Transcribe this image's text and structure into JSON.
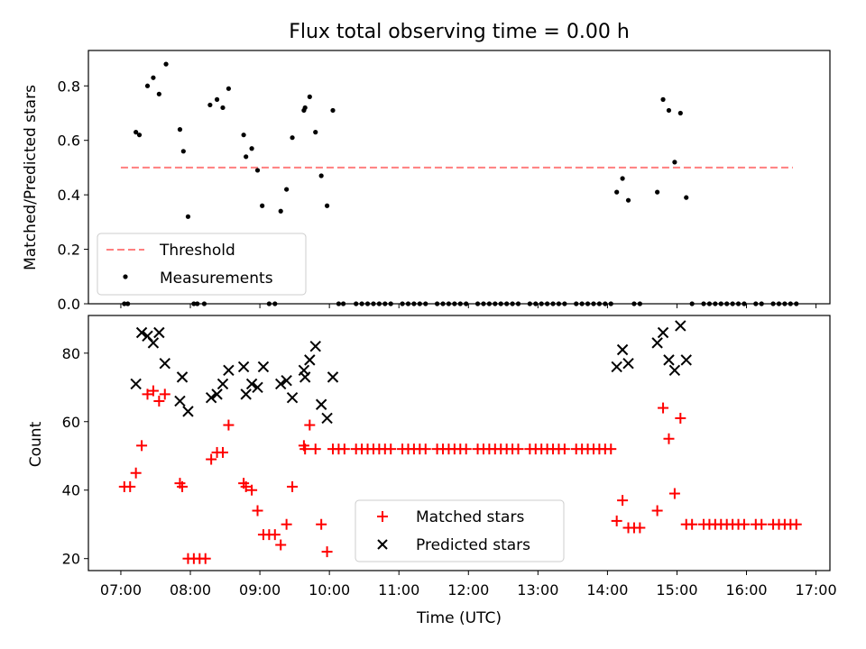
{
  "chart_data": [
    {
      "type": "scatter",
      "title": "Flux total observing time = 0.00 h",
      "xlabel": "",
      "ylabel": "Matched/Predicted stars",
      "ylim": [
        0,
        0.93
      ],
      "yticks": [
        "0.0",
        "0.2",
        "0.4",
        "0.6",
        "0.8"
      ],
      "yticks_values": [
        0,
        0.2,
        0.4,
        0.6,
        0.8
      ],
      "xlim": [
        "06:32",
        "17:12"
      ],
      "threshold": {
        "name": "Threshold",
        "value": 0.5,
        "x_range": [
          "07:00",
          "16:40"
        ],
        "color": "#ff7f7f"
      },
      "legend": {
        "position": "lower-left",
        "entries": [
          "Threshold",
          "Measurements"
        ]
      },
      "series": [
        {
          "name": "Measurements",
          "color": "#000000",
          "marker": "dot",
          "points": [
            [
              "07:03",
              0
            ],
            [
              "07:06",
              0
            ],
            [
              "07:13",
              0.63
            ],
            [
              "07:16",
              0.62
            ],
            [
              "07:23",
              0.8
            ],
            [
              "07:28",
              0.83
            ],
            [
              "07:33",
              0.77
            ],
            [
              "07:39",
              0.88
            ],
            [
              "07:51",
              0.64
            ],
            [
              "07:54",
              0.56
            ],
            [
              "07:58",
              0.32
            ],
            [
              "08:03",
              0
            ],
            [
              "08:06",
              0
            ],
            [
              "08:12",
              0
            ],
            [
              "08:17",
              0.73
            ],
            [
              "08:23",
              0.75
            ],
            [
              "08:28",
              0.72
            ],
            [
              "08:33",
              0.79
            ],
            [
              "08:46",
              0.62
            ],
            [
              "08:48",
              0.54
            ],
            [
              "08:53",
              0.57
            ],
            [
              "08:58",
              0.49
            ],
            [
              "09:02",
              0.36
            ],
            [
              "09:08",
              0
            ],
            [
              "09:13",
              0
            ],
            [
              "09:18",
              0.34
            ],
            [
              "09:23",
              0.42
            ],
            [
              "09:28",
              0.61
            ],
            [
              "09:38",
              0.71
            ],
            [
              "09:39",
              0.72
            ],
            [
              "09:43",
              0.76
            ],
            [
              "09:48",
              0.63
            ],
            [
              "09:53",
              0.47
            ],
            [
              "09:58",
              0.36
            ],
            [
              "10:03",
              0.71
            ],
            [
              "10:08",
              0
            ],
            [
              "10:12",
              0
            ],
            [
              "10:23",
              0
            ],
            [
              "10:28",
              0
            ],
            [
              "10:33",
              0
            ],
            [
              "10:38",
              0
            ],
            [
              "10:43",
              0
            ],
            [
              "10:48",
              0
            ],
            [
              "10:53",
              0
            ],
            [
              "11:03",
              0
            ],
            [
              "11:08",
              0
            ],
            [
              "11:13",
              0
            ],
            [
              "11:18",
              0
            ],
            [
              "11:23",
              0
            ],
            [
              "11:33",
              0
            ],
            [
              "11:38",
              0
            ],
            [
              "11:43",
              0
            ],
            [
              "11:48",
              0
            ],
            [
              "11:53",
              0
            ],
            [
              "11:58",
              0
            ],
            [
              "12:08",
              0
            ],
            [
              "12:13",
              0
            ],
            [
              "12:18",
              0
            ],
            [
              "12:23",
              0
            ],
            [
              "12:28",
              0
            ],
            [
              "12:33",
              0
            ],
            [
              "12:38",
              0
            ],
            [
              "12:43",
              0
            ],
            [
              "12:53",
              0
            ],
            [
              "12:58",
              0
            ],
            [
              "13:03",
              0
            ],
            [
              "13:08",
              0
            ],
            [
              "13:13",
              0
            ],
            [
              "13:18",
              0
            ],
            [
              "13:23",
              0
            ],
            [
              "13:33",
              0
            ],
            [
              "13:38",
              0
            ],
            [
              "13:43",
              0
            ],
            [
              "13:48",
              0
            ],
            [
              "13:53",
              0
            ],
            [
              "13:58",
              0
            ],
            [
              "14:03",
              0
            ],
            [
              "14:08",
              0.41
            ],
            [
              "14:13",
              0.46
            ],
            [
              "14:18",
              0.38
            ],
            [
              "14:23",
              0
            ],
            [
              "14:28",
              0
            ],
            [
              "14:43",
              0.41
            ],
            [
              "14:48",
              0.75
            ],
            [
              "14:53",
              0.71
            ],
            [
              "14:58",
              0.52
            ],
            [
              "15:03",
              0.7
            ],
            [
              "15:08",
              0.39
            ],
            [
              "15:13",
              0
            ],
            [
              "15:23",
              0
            ],
            [
              "15:28",
              0
            ],
            [
              "15:33",
              0
            ],
            [
              "15:38",
              0
            ],
            [
              "15:43",
              0
            ],
            [
              "15:48",
              0
            ],
            [
              "15:53",
              0
            ],
            [
              "15:58",
              0
            ],
            [
              "16:08",
              0
            ],
            [
              "16:13",
              0
            ],
            [
              "16:23",
              0
            ],
            [
              "16:28",
              0
            ],
            [
              "16:33",
              0
            ],
            [
              "16:38",
              0
            ],
            [
              "16:43",
              0
            ]
          ]
        }
      ]
    },
    {
      "type": "scatter",
      "title": "",
      "xlabel": "Time (UTC)",
      "ylabel": "Count",
      "ylim": [
        16.5,
        91
      ],
      "yticks": [
        "20",
        "40",
        "60",
        "80"
      ],
      "yticks_values": [
        20,
        40,
        60,
        80
      ],
      "xlim": [
        "06:32",
        "17:12"
      ],
      "xticks": [
        "07:00",
        "08:00",
        "09:00",
        "10:00",
        "11:00",
        "12:00",
        "13:00",
        "14:00",
        "15:00",
        "16:00",
        "17:00"
      ],
      "legend": {
        "position": "lower-center",
        "entries": [
          "Matched stars",
          "Predicted stars"
        ]
      },
      "series": [
        {
          "name": "Matched stars",
          "color": "#ff0000",
          "marker": "plus",
          "points": [
            [
              "07:03",
              41
            ],
            [
              "07:08",
              41
            ],
            [
              "07:13",
              45
            ],
            [
              "07:18",
              53
            ],
            [
              "07:23",
              68
            ],
            [
              "07:28",
              69
            ],
            [
              "07:33",
              66
            ],
            [
              "07:38",
              68
            ],
            [
              "07:51",
              42
            ],
            [
              "07:53",
              41
            ],
            [
              "07:58",
              20
            ],
            [
              "08:03",
              20
            ],
            [
              "08:08",
              20
            ],
            [
              "08:13",
              20
            ],
            [
              "08:18",
              49
            ],
            [
              "08:23",
              51
            ],
            [
              "08:28",
              51
            ],
            [
              "08:33",
              59
            ],
            [
              "08:46",
              42
            ],
            [
              "08:48",
              41
            ],
            [
              "08:53",
              40
            ],
            [
              "08:58",
              34
            ],
            [
              "09:03",
              27
            ],
            [
              "09:08",
              27
            ],
            [
              "09:13",
              27
            ],
            [
              "09:18",
              24
            ],
            [
              "09:23",
              30
            ],
            [
              "09:28",
              41
            ],
            [
              "09:38",
              53
            ],
            [
              "09:39",
              52
            ],
            [
              "09:43",
              59
            ],
            [
              "09:48",
              52
            ],
            [
              "09:53",
              30
            ],
            [
              "09:58",
              22
            ],
            [
              "10:03",
              52
            ],
            [
              "10:08",
              52
            ],
            [
              "10:13",
              52
            ],
            [
              "10:23",
              52
            ],
            [
              "10:28",
              52
            ],
            [
              "10:33",
              52
            ],
            [
              "10:38",
              52
            ],
            [
              "10:43",
              52
            ],
            [
              "10:48",
              52
            ],
            [
              "10:53",
              52
            ],
            [
              "11:03",
              52
            ],
            [
              "11:08",
              52
            ],
            [
              "11:13",
              52
            ],
            [
              "11:18",
              52
            ],
            [
              "11:23",
              52
            ],
            [
              "11:33",
              52
            ],
            [
              "11:38",
              52
            ],
            [
              "11:43",
              52
            ],
            [
              "11:48",
              52
            ],
            [
              "11:53",
              52
            ],
            [
              "11:58",
              52
            ],
            [
              "12:08",
              52
            ],
            [
              "12:13",
              52
            ],
            [
              "12:18",
              52
            ],
            [
              "12:23",
              52
            ],
            [
              "12:28",
              52
            ],
            [
              "12:33",
              52
            ],
            [
              "12:38",
              52
            ],
            [
              "12:43",
              52
            ],
            [
              "12:53",
              52
            ],
            [
              "12:58",
              52
            ],
            [
              "13:03",
              52
            ],
            [
              "13:08",
              52
            ],
            [
              "13:13",
              52
            ],
            [
              "13:18",
              52
            ],
            [
              "13:23",
              52
            ],
            [
              "13:33",
              52
            ],
            [
              "13:38",
              52
            ],
            [
              "13:43",
              52
            ],
            [
              "13:48",
              52
            ],
            [
              "13:53",
              52
            ],
            [
              "13:58",
              52
            ],
            [
              "14:03",
              52
            ],
            [
              "14:08",
              31
            ],
            [
              "14:13",
              37
            ],
            [
              "14:18",
              29
            ],
            [
              "14:23",
              29
            ],
            [
              "14:28",
              29
            ],
            [
              "14:43",
              34
            ],
            [
              "14:48",
              64
            ],
            [
              "14:53",
              55
            ],
            [
              "14:58",
              39
            ],
            [
              "15:03",
              61
            ],
            [
              "15:08",
              30
            ],
            [
              "15:13",
              30
            ],
            [
              "15:23",
              30
            ],
            [
              "15:28",
              30
            ],
            [
              "15:33",
              30
            ],
            [
              "15:38",
              30
            ],
            [
              "15:43",
              30
            ],
            [
              "15:48",
              30
            ],
            [
              "15:53",
              30
            ],
            [
              "15:58",
              30
            ],
            [
              "16:08",
              30
            ],
            [
              "16:13",
              30
            ],
            [
              "16:23",
              30
            ],
            [
              "16:28",
              30
            ],
            [
              "16:33",
              30
            ],
            [
              "16:38",
              30
            ],
            [
              "16:43",
              30
            ]
          ]
        },
        {
          "name": "Predicted stars",
          "color": "#000000",
          "marker": "x",
          "points": [
            [
              "07:13",
              71
            ],
            [
              "07:18",
              86
            ],
            [
              "07:23",
              85
            ],
            [
              "07:28",
              83
            ],
            [
              "07:33",
              86
            ],
            [
              "07:38",
              77
            ],
            [
              "07:51",
              66
            ],
            [
              "07:53",
              73
            ],
            [
              "07:58",
              63
            ],
            [
              "08:18",
              67
            ],
            [
              "08:23",
              68
            ],
            [
              "08:28",
              71
            ],
            [
              "08:33",
              75
            ],
            [
              "08:46",
              76
            ],
            [
              "08:48",
              68
            ],
            [
              "08:53",
              71
            ],
            [
              "08:58",
              70
            ],
            [
              "09:03",
              76
            ],
            [
              "09:18",
              71
            ],
            [
              "09:23",
              72
            ],
            [
              "09:28",
              67
            ],
            [
              "09:38",
              75
            ],
            [
              "09:39",
              73
            ],
            [
              "09:43",
              78
            ],
            [
              "09:48",
              82
            ],
            [
              "09:53",
              65
            ],
            [
              "09:58",
              61
            ],
            [
              "10:03",
              73
            ],
            [
              "14:08",
              76
            ],
            [
              "14:13",
              81
            ],
            [
              "14:18",
              77
            ],
            [
              "14:43",
              83
            ],
            [
              "14:48",
              86
            ],
            [
              "14:53",
              78
            ],
            [
              "14:58",
              75
            ],
            [
              "15:03",
              88
            ],
            [
              "15:08",
              78
            ]
          ]
        }
      ]
    }
  ]
}
